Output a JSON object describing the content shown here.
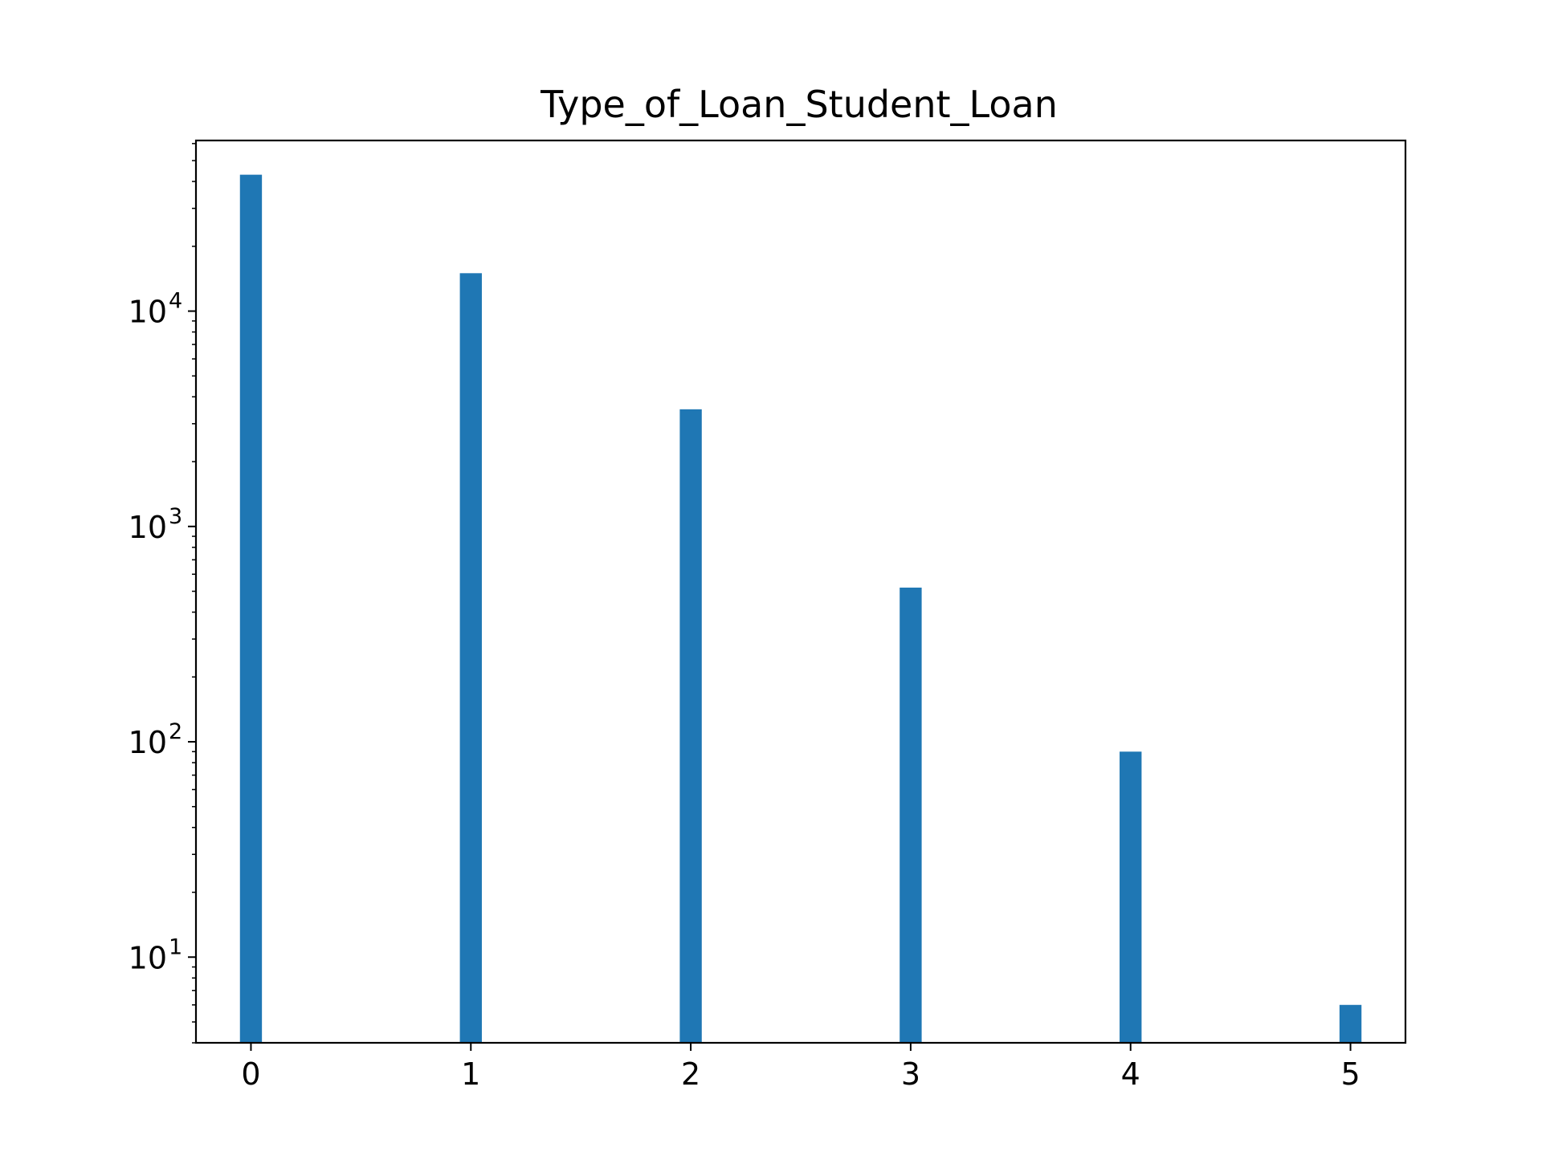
{
  "chart_data": {
    "type": "bar",
    "title": "Type_of_Loan_Student_Loan",
    "xlabel": "",
    "ylabel": "",
    "yscale": "log",
    "x": [
      0,
      1,
      2,
      3,
      4,
      5
    ],
    "values": [
      43000,
      15000,
      3500,
      520,
      90,
      6
    ],
    "xlim": [
      -0.25,
      5.25
    ],
    "ylim": [
      4,
      62000
    ],
    "xticks": [
      "0",
      "1",
      "2",
      "3",
      "4",
      "5"
    ],
    "yticks": [
      {
        "value": 10,
        "base": "10",
        "exp": "1"
      },
      {
        "value": 100,
        "base": "10",
        "exp": "2"
      },
      {
        "value": 1000,
        "base": "10",
        "exp": "3"
      },
      {
        "value": 10000,
        "base": "10",
        "exp": "4"
      }
    ],
    "grid": false,
    "legend": "none",
    "bar_color": "#1f77b4"
  }
}
